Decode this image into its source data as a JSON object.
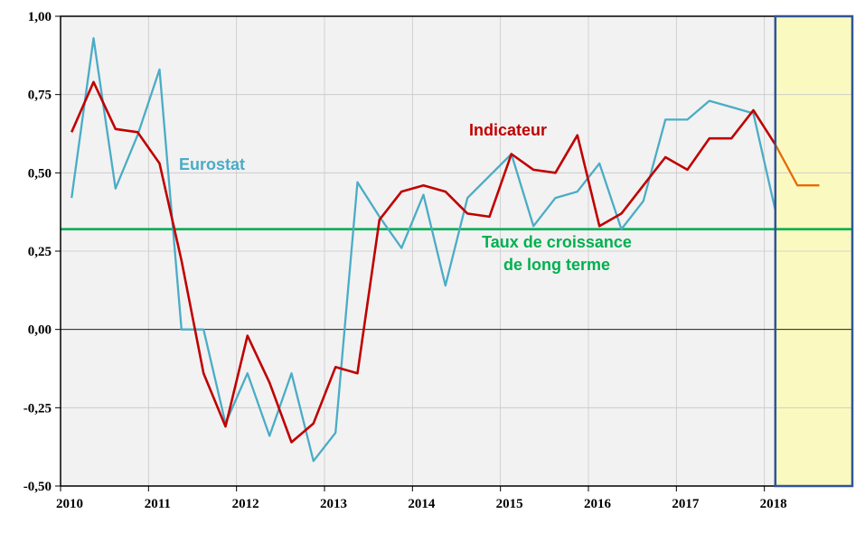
{
  "chart_data": {
    "type": "line",
    "ylim": [
      -0.5,
      1.0
    ],
    "y_ticks": [
      {
        "value": 1.0,
        "label": "1,00"
      },
      {
        "value": 0.75,
        "label": "0,75"
      },
      {
        "value": 0.5,
        "label": "0,50"
      },
      {
        "value": 0.25,
        "label": "0,25"
      },
      {
        "value": 0.0,
        "label": "0,00"
      },
      {
        "value": -0.25,
        "label": "-0,25"
      },
      {
        "value": -0.5,
        "label": "-0,50"
      }
    ],
    "x_range": [
      2010,
      2019
    ],
    "x_ticks": [
      "2010",
      "2011",
      "2012",
      "2013",
      "2014",
      "2015",
      "2016",
      "2017",
      "2018"
    ],
    "grid": true,
    "colors": {
      "eurostat": "#4bacc6",
      "indicateur": "#c00000",
      "forecast": "#e46c0a",
      "long_term": "#00b050",
      "plot_bg": "#f2f2f2",
      "forecast_bg": "#fafac0",
      "forecast_border": "#2f5597"
    },
    "forecast_zone": {
      "from": 2018.125,
      "to": 2019
    },
    "series": [
      {
        "name": "Eurostat",
        "key": "eurostat",
        "x": [
          2010.125,
          2010.375,
          2010.625,
          2010.875,
          2011.125,
          2011.375,
          2011.625,
          2011.875,
          2012.125,
          2012.375,
          2012.625,
          2012.875,
          2013.125,
          2013.375,
          2013.625,
          2013.875,
          2014.125,
          2014.375,
          2014.625,
          2014.875,
          2015.125,
          2015.375,
          2015.625,
          2015.875,
          2016.125,
          2016.375,
          2016.625,
          2016.875,
          2017.125,
          2017.375,
          2017.625,
          2017.875,
          2018.125
        ],
        "values": [
          0.42,
          0.93,
          0.45,
          0.62,
          0.83,
          0.0,
          0.0,
          -0.3,
          -0.14,
          -0.34,
          -0.14,
          -0.42,
          -0.33,
          0.47,
          0.36,
          0.26,
          0.43,
          0.14,
          0.42,
          0.49,
          0.56,
          0.33,
          0.42,
          0.44,
          0.53,
          0.32,
          0.41,
          0.67,
          0.67,
          0.73,
          0.71,
          0.69,
          0.38
        ]
      },
      {
        "name": "Indicateur",
        "key": "indicateur",
        "x": [
          2010.125,
          2010.375,
          2010.625,
          2010.875,
          2011.125,
          2011.375,
          2011.625,
          2011.875,
          2012.125,
          2012.375,
          2012.625,
          2012.875,
          2013.125,
          2013.375,
          2013.625,
          2013.875,
          2014.125,
          2014.375,
          2014.625,
          2014.875,
          2015.125,
          2015.375,
          2015.625,
          2015.875,
          2016.125,
          2016.375,
          2016.625,
          2016.875,
          2017.125,
          2017.375,
          2017.625,
          2017.875,
          2018.125
        ],
        "values": [
          0.63,
          0.79,
          0.64,
          0.63,
          0.53,
          0.22,
          -0.14,
          -0.31,
          -0.02,
          -0.17,
          -0.36,
          -0.3,
          -0.12,
          -0.14,
          0.35,
          0.44,
          0.46,
          0.44,
          0.37,
          0.36,
          0.56,
          0.51,
          0.5,
          0.62,
          0.33,
          0.37,
          0.46,
          0.55,
          0.51,
          0.61,
          0.61,
          0.7,
          0.59
        ]
      },
      {
        "key": "forecast",
        "x": [
          2018.125,
          2018.375,
          2018.625
        ],
        "values": [
          0.59,
          0.46,
          0.46
        ]
      },
      {
        "key": "long_term",
        "x": [
          2010,
          2019
        ],
        "values": [
          0.32,
          0.32
        ]
      }
    ],
    "annotations": {
      "eurostat_label": "Eurostat",
      "indicateur_label": "Indicateur",
      "long_term_line1": "Taux de croissance",
      "long_term_line2": "de long terme"
    }
  }
}
